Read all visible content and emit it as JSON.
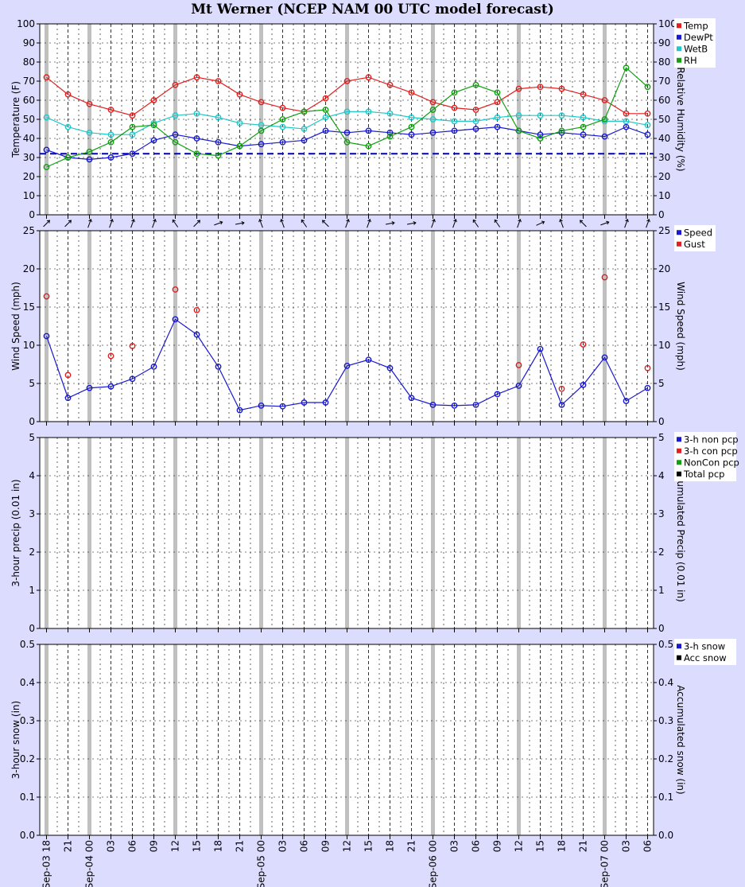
{
  "title": "Mt Werner (NCEP NAM 00 UTC model forecast)",
  "x_labels": [
    "Sep-03 18",
    "21",
    "Sep-04 00",
    "03",
    "06",
    "09",
    "12",
    "15",
    "18",
    "21",
    "Sep-05 00",
    "03",
    "06",
    "09",
    "12",
    "15",
    "18",
    "21",
    "Sep-06 00",
    "03",
    "06",
    "09",
    "12",
    "15",
    "18",
    "21",
    "Sep-07 00",
    "03",
    "06"
  ],
  "colors": {
    "temp": "#e02020",
    "dewpt": "#1818d0",
    "wetb": "#20c8c8",
    "rh": "#10a010",
    "gust": "#e02020",
    "speed": "#1818d0",
    "freeze": "#0000c0",
    "black": "#000000"
  },
  "chart_data": [
    {
      "type": "line",
      "name": "temperature",
      "ylabel": "Temperature (F)",
      "y2label": "Relative Humidity (%)",
      "ylim": [
        0,
        100
      ],
      "yticks": [
        0,
        10,
        20,
        30,
        40,
        50,
        60,
        70,
        80,
        90,
        100
      ],
      "legend": [
        "Temp",
        "DewPt",
        "WetB",
        "RH"
      ],
      "reference_line": 32,
      "series": [
        {
          "name": "Temp",
          "color": "temp",
          "values": [
            72,
            63,
            58,
            55,
            52,
            60,
            68,
            72,
            70,
            63,
            59,
            56,
            54,
            61,
            70,
            72,
            68,
            64,
            59,
            56,
            55,
            59,
            66,
            67,
            66,
            63,
            60,
            53,
            53
          ]
        },
        {
          "name": "DewPt",
          "color": "dewpt",
          "values": [
            34,
            30,
            29,
            30,
            32,
            39,
            42,
            40,
            38,
            36,
            37,
            38,
            39,
            44,
            43,
            44,
            43,
            42,
            43,
            44,
            45,
            46,
            44,
            42,
            43,
            42,
            41,
            46,
            42
          ]
        },
        {
          "name": "WetB",
          "color": "wetb",
          "values": [
            51,
            46,
            43,
            42,
            42,
            48,
            52,
            53,
            51,
            48,
            47,
            46,
            45,
            51,
            54,
            54,
            53,
            51,
            50,
            49,
            49,
            51,
            52,
            52,
            52,
            51,
            49,
            49,
            47
          ]
        },
        {
          "name": "RH",
          "color": "rh",
          "values": [
            25,
            30,
            33,
            38,
            46,
            47,
            38,
            32,
            31,
            36,
            44,
            50,
            54,
            55,
            38,
            36,
            41,
            46,
            55,
            64,
            68,
            64,
            44,
            40,
            44,
            46,
            50,
            77,
            67
          ]
        }
      ]
    },
    {
      "type": "line",
      "name": "wind",
      "ylabel": "Wind Speed (mph)",
      "y2label": "Wind Speed (mph)",
      "ylim": [
        0,
        25
      ],
      "yticks": [
        0,
        5,
        10,
        15,
        20,
        25
      ],
      "legend": [
        "Speed",
        "Gust"
      ],
      "series": [
        {
          "name": "Speed",
          "color": "speed",
          "values": [
            11.2,
            3.1,
            4.4,
            4.6,
            5.6,
            7.2,
            13.4,
            11.4,
            7.2,
            1.5,
            2.1,
            2.0,
            2.5,
            2.5,
            7.3,
            8.1,
            7.0,
            3.1,
            2.2,
            2.1,
            2.2,
            3.6,
            4.7,
            9.5,
            2.2,
            4.8,
            8.4,
            2.7,
            4.4
          ]
        },
        {
          "name": "Gust",
          "color": "gust",
          "values": [
            16.4,
            6.1,
            null,
            8.6,
            9.9,
            null,
            17.3,
            14.6,
            null,
            null,
            null,
            null,
            null,
            null,
            null,
            null,
            null,
            null,
            null,
            null,
            null,
            null,
            7.4,
            null,
            4.3,
            10.1,
            18.9,
            null,
            7.0
          ]
        }
      ],
      "wind_direction_deg": [
        45,
        45,
        20,
        20,
        20,
        20,
        325,
        45,
        70,
        80,
        340,
        340,
        325,
        315,
        20,
        20,
        80,
        80,
        20,
        20,
        325,
        325,
        20,
        65,
        340,
        315,
        70,
        20,
        20
      ]
    },
    {
      "type": "bar",
      "name": "precip",
      "ylabel": "3-hour precip (0.01 in)",
      "y2label": "Accumulated Precip (0.01 in)",
      "ylim": [
        0,
        5
      ],
      "yticks": [
        0,
        1,
        2,
        3,
        4,
        5
      ],
      "legend": [
        "3-h non pcp",
        "3-h con pcp",
        "NonCon pcp",
        "Total pcp"
      ],
      "series": []
    },
    {
      "type": "bar",
      "name": "snow",
      "ylabel": "3-hour snow (in)",
      "y2label": "Accumulated snow (in)",
      "ylim": [
        0,
        0.5
      ],
      "yticks": [
        0.0,
        0.1,
        0.2,
        0.3,
        0.4,
        0.5
      ],
      "legend": [
        "3-h snow",
        "Acc snow"
      ],
      "series": []
    }
  ]
}
